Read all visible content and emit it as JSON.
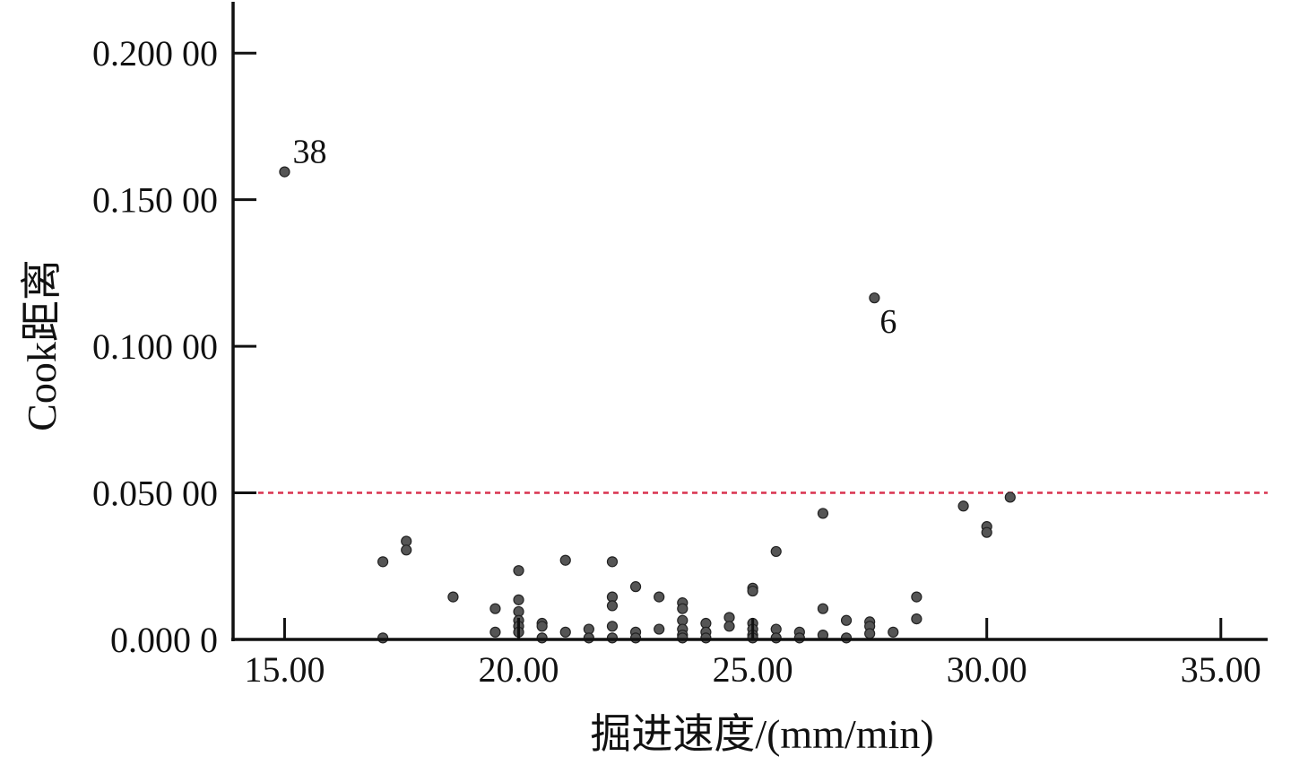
{
  "chart_data": {
    "type": "scatter",
    "xlabel": "掘进速度/(mm/min)",
    "ylabel": "Cook距离",
    "xlim": [
      13.9,
      36.0
    ],
    "ylim": [
      0,
      0.2175
    ],
    "x_ticks": [
      15,
      20,
      25,
      30,
      35
    ],
    "x_tick_labels": [
      "15.00",
      "20.00",
      "25.00",
      "30.00",
      "35.00"
    ],
    "y_ticks": [
      0,
      0.05,
      0.1,
      0.15,
      0.2
    ],
    "y_tick_labels": [
      "0.000 0",
      "0.050 00",
      "0.100 00",
      "0.150 00",
      "0.200 00"
    ],
    "threshold": {
      "value": 0.05,
      "style": "dashed",
      "color": "#d9324f"
    },
    "grid": false,
    "point_color": "#555555",
    "annotations": [
      {
        "text": "38",
        "x": 15.0,
        "y": 0.1595
      },
      {
        "text": "6",
        "x": 27.6,
        "y": 0.1165
      }
    ],
    "points": [
      [
        15.0,
        0.1595
      ],
      [
        27.6,
        0.1165
      ],
      [
        17.1,
        0.0265
      ],
      [
        17.1,
        0.0005
      ],
      [
        17.6,
        0.0335
      ],
      [
        17.6,
        0.0305
      ],
      [
        18.6,
        0.0145
      ],
      [
        19.5,
        0.0105
      ],
      [
        19.5,
        0.0025
      ],
      [
        20.0,
        0.0235
      ],
      [
        20.0,
        0.0135
      ],
      [
        20.0,
        0.0095
      ],
      [
        20.0,
        0.0065
      ],
      [
        20.0,
        0.0045
      ],
      [
        20.0,
        0.0025
      ],
      [
        20.5,
        0.0055
      ],
      [
        20.5,
        0.0045
      ],
      [
        20.5,
        0.0005
      ],
      [
        21.0,
        0.027
      ],
      [
        21.0,
        0.0025
      ],
      [
        21.5,
        0.0035
      ],
      [
        21.5,
        0.0005
      ],
      [
        22.0,
        0.0265
      ],
      [
        22.0,
        0.0145
      ],
      [
        22.0,
        0.0115
      ],
      [
        22.0,
        0.0045
      ],
      [
        22.0,
        0.0005
      ],
      [
        22.5,
        0.018
      ],
      [
        22.5,
        0.0025
      ],
      [
        22.5,
        0.0005
      ],
      [
        23.0,
        0.0145
      ],
      [
        23.0,
        0.0035
      ],
      [
        23.5,
        0.0125
      ],
      [
        23.5,
        0.0105
      ],
      [
        23.5,
        0.0065
      ],
      [
        23.5,
        0.0035
      ],
      [
        23.5,
        0.0015
      ],
      [
        23.5,
        0.0005
      ],
      [
        24.0,
        0.0055
      ],
      [
        24.0,
        0.0025
      ],
      [
        24.0,
        0.0005
      ],
      [
        24.5,
        0.0075
      ],
      [
        24.5,
        0.0045
      ],
      [
        25.0,
        0.0175
      ],
      [
        25.0,
        0.0165
      ],
      [
        25.0,
        0.0055
      ],
      [
        25.0,
        0.0035
      ],
      [
        25.0,
        0.0015
      ],
      [
        25.0,
        0.0005
      ],
      [
        25.5,
        0.03
      ],
      [
        25.5,
        0.0035
      ],
      [
        25.5,
        0.0005
      ],
      [
        26.0,
        0.0025
      ],
      [
        26.0,
        0.0005
      ],
      [
        26.5,
        0.043
      ],
      [
        26.5,
        0.0105
      ],
      [
        26.5,
        0.0015
      ],
      [
        27.0,
        0.0065
      ],
      [
        27.0,
        0.0005
      ],
      [
        27.5,
        0.006
      ],
      [
        27.5,
        0.0045
      ],
      [
        27.5,
        0.002
      ],
      [
        28.0,
        0.0025
      ],
      [
        28.5,
        0.0145
      ],
      [
        28.5,
        0.007
      ],
      [
        29.5,
        0.0455
      ],
      [
        30.0,
        0.0385
      ],
      [
        30.0,
        0.0365
      ],
      [
        30.5,
        0.0485
      ]
    ]
  }
}
